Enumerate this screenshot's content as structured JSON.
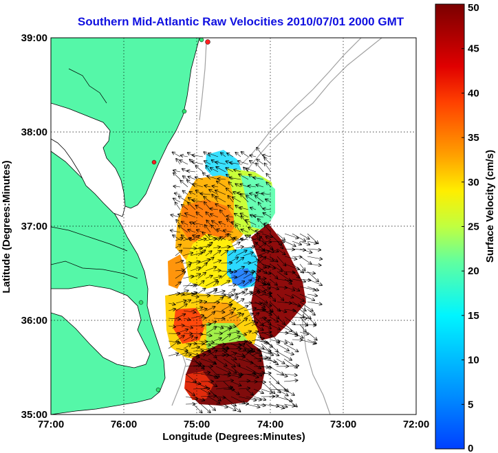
{
  "title": "Southern Mid-Atlantic Raw Velocities 2010/07/01 2000 GMT",
  "map": {
    "x_axis_title": "Longitude (Degrees:Minutes)",
    "y_axis_title": "Latitude (Degrees:Minutes)",
    "x_ticks": [
      "77:00",
      "76:00",
      "75:00",
      "74:00",
      "73:00",
      "72:00"
    ],
    "y_ticks": [
      "39:00",
      "38:00",
      "37:00",
      "36:00",
      "35:00"
    ],
    "lon_range": [
      -77,
      -72
    ],
    "lat_range": [
      35,
      39
    ],
    "grid": "dotted",
    "land_color": "#55f7a8",
    "coastline_color": "#000000",
    "bathymetry_color": "#a0a0a0"
  },
  "colorbar": {
    "label": "Surface Velocity (cm/s)",
    "ticks": [
      "0",
      "5",
      "10",
      "15",
      "20",
      "25",
      "30",
      "35",
      "40",
      "45",
      "50"
    ],
    "range": [
      0,
      50
    ],
    "colormap": "jet"
  }
}
